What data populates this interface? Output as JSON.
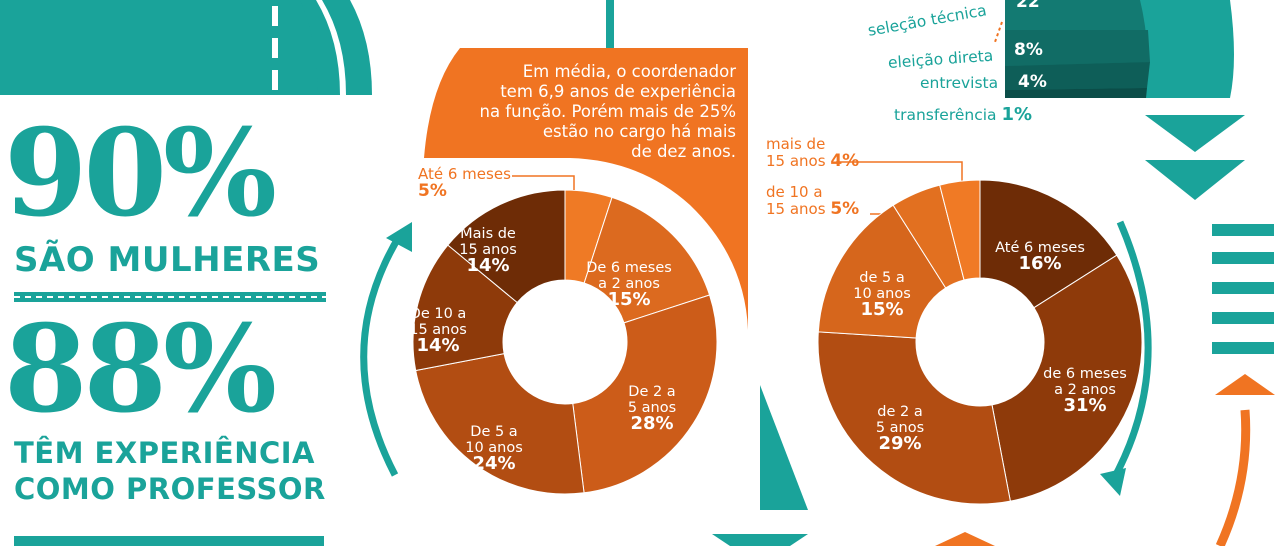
{
  "stats": {
    "women_pct": "90%",
    "women_label": "SÃO MULHERES",
    "teacher_pct": "88%",
    "teacher_label_1": "TÊM EXPERIÊNCIA",
    "teacher_label_2": "COMO PROFESSOR"
  },
  "note": {
    "lines": [
      "Em média, o coordenador",
      "tem 6,9 anos de experiência",
      "na função. Porém mais de 25%",
      "estão no cargo há mais",
      "de dez anos."
    ]
  },
  "selection": {
    "items": [
      {
        "label": "seleção técnica",
        "value": "22"
      },
      {
        "label": "eleição direta",
        "value": "8%"
      },
      {
        "label": "entrevista",
        "value": "4%"
      },
      {
        "label": "transferência",
        "value": "1%"
      }
    ]
  },
  "chart_data": [
    {
      "type": "pie",
      "categories": [
        "Até 6 meses",
        "De 6 meses a 2 anos",
        "De 2 a 5 anos",
        "De 5 a 10 anos",
        "De 10 a 15 anos",
        "Mais de 15 anos"
      ],
      "values": [
        5,
        15,
        28,
        24,
        14,
        14
      ],
      "labels": [
        {
          "lines": [
            "Até 6 meses"
          ],
          "pct": "5%"
        },
        {
          "lines": [
            "De 6 meses",
            "a 2 anos"
          ],
          "pct": "15%"
        },
        {
          "lines": [
            "De 2 a",
            "5 anos"
          ],
          "pct": "28%"
        },
        {
          "lines": [
            "De 5 a",
            "10 anos"
          ],
          "pct": "24%"
        },
        {
          "lines": [
            "De 10 a",
            "15 anos"
          ],
          "pct": "14%"
        },
        {
          "lines": [
            "Mais de",
            "15 anos"
          ],
          "pct": "14%"
        }
      ],
      "colors": [
        "#ef7a25",
        "#dc6a1f",
        "#cc5c19",
        "#b24d12",
        "#8e3a0a",
        "#6e2c06"
      ]
    },
    {
      "type": "pie",
      "categories": [
        "Até 6 meses",
        "de 6 meses a 2 anos",
        "de 2 a 5 anos",
        "de 5 a 10 anos",
        "de 10 a 15 anos",
        "mais de 15 anos"
      ],
      "values": [
        16,
        31,
        29,
        15,
        5,
        4
      ],
      "labels": [
        {
          "lines": [
            "Até 6 meses"
          ],
          "pct": "16%"
        },
        {
          "lines": [
            "de 6 meses",
            "a 2 anos"
          ],
          "pct": "31%"
        },
        {
          "lines": [
            "de 2 a",
            "5 anos"
          ],
          "pct": "29%"
        },
        {
          "lines": [
            "de 5 a",
            "10 anos"
          ],
          "pct": "15%"
        },
        {
          "lines": [
            "de 10 a",
            "15 anos"
          ],
          "pct": "5%"
        },
        {
          "lines": [
            "mais de",
            "15 anos"
          ],
          "pct": "4%"
        }
      ],
      "colors": [
        "#6e2c06",
        "#8e3a0a",
        "#b24d12",
        "#d6661c",
        "#e27020",
        "#f07a25"
      ]
    }
  ]
}
